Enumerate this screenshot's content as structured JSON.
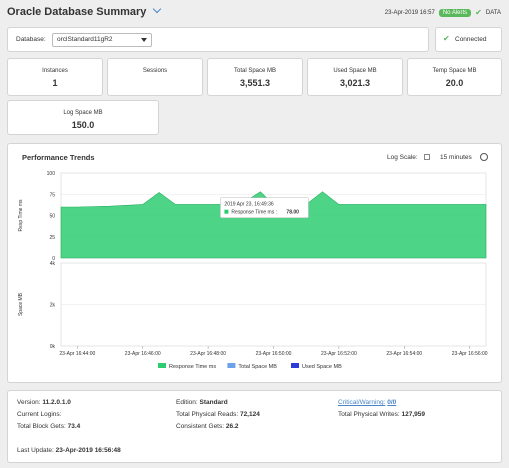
{
  "header": {
    "title": "Oracle Database Summary",
    "timestamp": "23-Apr-2019 16:57",
    "alert_badge": "No Alerts",
    "data_label": "DATA"
  },
  "database": {
    "label": "Database:",
    "selected": "orclStandard11gR2",
    "status": "Connected"
  },
  "kpis": [
    {
      "label": "Instances",
      "value": "1"
    },
    {
      "label": "Sessions",
      "value": ""
    },
    {
      "label": "Total Space MB",
      "value": "3,551.3"
    },
    {
      "label": "Used Space MB",
      "value": "3,021.3"
    },
    {
      "label": "Temp Space MB",
      "value": "20.0"
    },
    {
      "label": "Log Space MB",
      "value": "150.0"
    }
  ],
  "trends": {
    "title": "Performance Trends",
    "log_scale_label": "Log Scale:",
    "range": "15 minutes",
    "tooltip_time": "2019 Apr 23, 16:49:36",
    "tooltip_series": "Response Time ms",
    "tooltip_value": "78.00"
  },
  "chart_data": {
    "type": "area",
    "x": [
      "16:43:30",
      "16:44:00",
      "16:45:00",
      "16:45:30",
      "16:46:00",
      "16:46:30",
      "16:47:00",
      "16:48:00",
      "16:49:00",
      "16:49:36",
      "16:50:00",
      "16:50:30",
      "16:51:00",
      "16:51:30",
      "16:52:00",
      "16:52:30",
      "16:53:00",
      "16:54:00",
      "16:55:00",
      "16:56:00",
      "16:56:30"
    ],
    "xticks": [
      "23-Apr 16:44:00",
      "23-Apr 16:46:00",
      "23-Apr 16:48:00",
      "23-Apr 16:50:00",
      "23-Apr 16:52:00",
      "23-Apr 16:54:00",
      "23-Apr 16:56:00"
    ],
    "top": {
      "ylabel": "Resp Time ms",
      "yticks": [
        "100",
        "75",
        "50",
        "25",
        "0"
      ],
      "ylim": [
        0,
        100
      ],
      "series": [
        {
          "name": "Response Time ms",
          "color": "#2ecc71",
          "values": [
            60,
            60,
            61,
            62,
            63,
            77,
            63,
            63,
            63,
            78,
            63,
            63,
            63,
            78,
            63,
            63,
            63,
            63,
            63,
            63,
            63
          ]
        }
      ]
    },
    "bottom": {
      "ylabel": "Space MB",
      "yticks": [
        "4k",
        "2k",
        "0k"
      ],
      "ylim": [
        0,
        4000
      ],
      "series": []
    },
    "legend": [
      {
        "name": "Response Time ms",
        "color": "#2ecc71"
      },
      {
        "name": "Total Space MB",
        "color": "#6aa3ea"
      },
      {
        "name": "Used Space MB",
        "color": "#2b3ad8"
      }
    ]
  },
  "footer": {
    "version_label": "Version:",
    "version": "11.2.0.1.0",
    "logins_label": "Current Logins:",
    "logins": "",
    "block_gets_label": "Total Block Gets:",
    "block_gets": "73.4",
    "edition_label": "Edition:",
    "edition": "Standard",
    "phys_reads_label": "Total Physical Reads:",
    "phys_reads": "72,124",
    "consistent_label": "Consistent Gets:",
    "consistent": "26.2",
    "crit_label": "Critical/Warning:",
    "crit": "0/0",
    "phys_writes_label": "Total Physical Writes:",
    "phys_writes": "127,959",
    "last_update_label": "Last Update:",
    "last_update": "23-Apr-2019 16:56:48"
  }
}
